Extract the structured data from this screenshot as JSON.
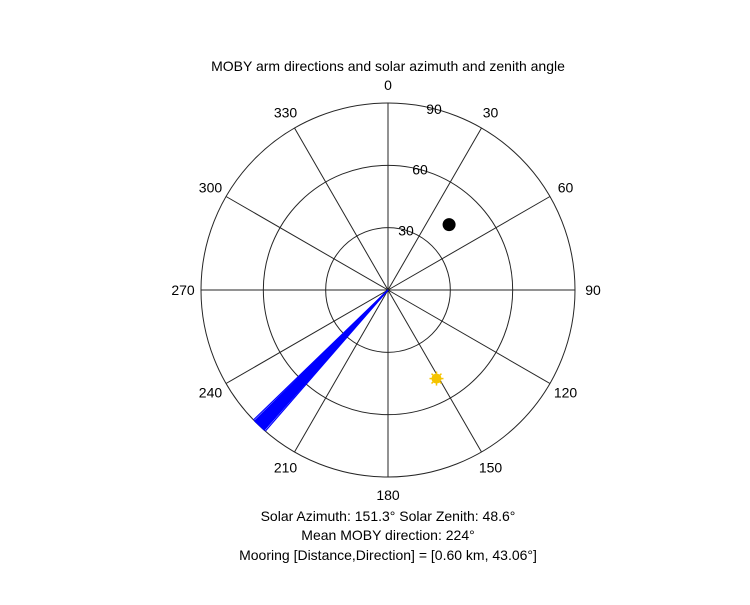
{
  "chart_data": {
    "type": "polar",
    "title": "MOBY arm directions and solar azimuth and zenith angle",
    "angular_axis": {
      "direction": "clockwise",
      "zero_location": "top",
      "tick_labels": [
        "0",
        "30",
        "60",
        "90",
        "120",
        "150",
        "180",
        "210",
        "240",
        "270",
        "300",
        "330"
      ]
    },
    "radial_axis": {
      "range": [
        0,
        90
      ],
      "tick_values": [
        30,
        60,
        90
      ],
      "tick_labels": [
        "30",
        "60",
        "90"
      ]
    },
    "series": [
      {
        "kind": "arm-lines",
        "color": "#0000ff",
        "directions_deg": [
          226,
          225.5,
          225,
          224.5,
          224,
          223.5,
          223,
          222.5,
          222,
          221.5,
          221
        ],
        "zenith_deg": 90
      },
      {
        "kind": "sun-marker",
        "color": "#f5c400",
        "azimuth_deg": 151.3,
        "zenith_deg": 48.6
      },
      {
        "kind": "mooring-marker",
        "color": "#000000",
        "direction_deg": 43.06,
        "zenith_deg": 43.06
      }
    ],
    "grid": true
  },
  "captions": {
    "line1": "Solar Azimuth: 151.3°    Solar Zenith: 48.6°",
    "line2": "Mean MOBY direction: 224°",
    "line3": "Mooring [Distance,Direction] = [0.60 km, 43.06°]"
  }
}
